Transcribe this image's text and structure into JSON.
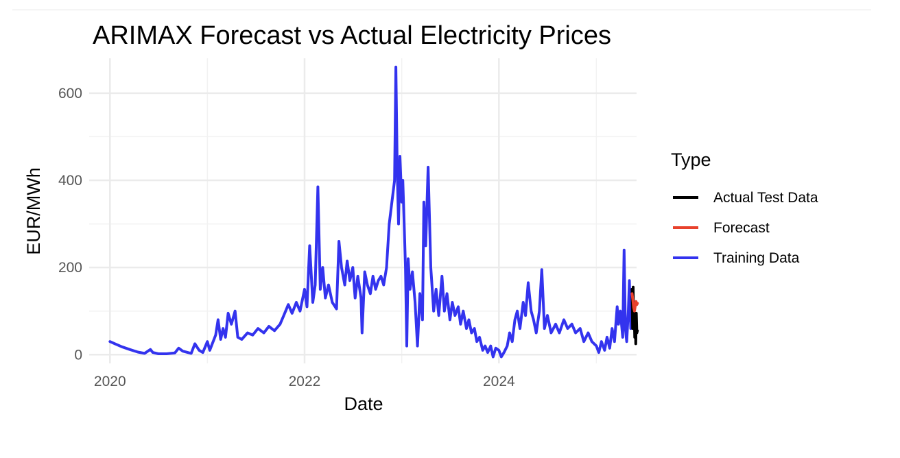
{
  "chart_data": {
    "type": "line",
    "title": "ARIMAX Forecast vs Actual Electricity Prices",
    "xlabel": "Date",
    "ylabel": "EUR/MWh",
    "xlim": [
      "2019-10-15",
      "2025-06-01"
    ],
    "ylim": [
      -20,
      680
    ],
    "x_ticks": [
      {
        "date": "2020-01-01",
        "label": "2020"
      },
      {
        "date": "2022-01-01",
        "label": "2022"
      },
      {
        "date": "2024-01-01",
        "label": "2024"
      }
    ],
    "y_ticks": [
      0,
      200,
      400,
      600
    ],
    "grid": true,
    "legend": {
      "title": "Type",
      "position": "right",
      "entries": [
        {
          "label": "Actual Test Data",
          "color": "#000000"
        },
        {
          "label": "Forecast",
          "color": "#e8412c"
        },
        {
          "label": "Training Data",
          "color": "#3333ee"
        }
      ]
    },
    "series": [
      {
        "name": "Training Data",
        "color": "#3333ee",
        "points": [
          [
            "2020-01-01",
            30
          ],
          [
            "2020-01-20",
            25
          ],
          [
            "2020-02-15",
            18
          ],
          [
            "2020-03-15",
            12
          ],
          [
            "2020-04-15",
            6
          ],
          [
            "2020-05-10",
            3
          ],
          [
            "2020-06-01",
            12
          ],
          [
            "2020-06-10",
            5
          ],
          [
            "2020-07-01",
            2
          ],
          [
            "2020-08-01",
            2
          ],
          [
            "2020-09-01",
            4
          ],
          [
            "2020-09-15",
            15
          ],
          [
            "2020-10-01",
            8
          ],
          [
            "2020-11-01",
            3
          ],
          [
            "2020-11-15",
            25
          ],
          [
            "2020-12-01",
            10
          ],
          [
            "2020-12-15",
            5
          ],
          [
            "2021-01-01",
            30
          ],
          [
            "2021-01-10",
            10
          ],
          [
            "2021-02-01",
            45
          ],
          [
            "2021-02-10",
            80
          ],
          [
            "2021-02-20",
            35
          ],
          [
            "2021-03-01",
            60
          ],
          [
            "2021-03-10",
            40
          ],
          [
            "2021-03-20",
            95
          ],
          [
            "2021-04-01",
            70
          ],
          [
            "2021-04-15",
            100
          ],
          [
            "2021-04-25",
            40
          ],
          [
            "2021-05-10",
            35
          ],
          [
            "2021-06-01",
            50
          ],
          [
            "2021-06-20",
            45
          ],
          [
            "2021-07-10",
            60
          ],
          [
            "2021-08-01",
            50
          ],
          [
            "2021-08-20",
            65
          ],
          [
            "2021-09-10",
            55
          ],
          [
            "2021-10-01",
            70
          ],
          [
            "2021-10-15",
            90
          ],
          [
            "2021-11-01",
            115
          ],
          [
            "2021-11-15",
            95
          ],
          [
            "2021-12-01",
            120
          ],
          [
            "2021-12-15",
            100
          ],
          [
            "2022-01-01",
            150
          ],
          [
            "2022-01-10",
            110
          ],
          [
            "2022-01-20",
            250
          ],
          [
            "2022-02-01",
            120
          ],
          [
            "2022-02-10",
            160
          ],
          [
            "2022-02-20",
            385
          ],
          [
            "2022-03-01",
            150
          ],
          [
            "2022-03-10",
            200
          ],
          [
            "2022-03-20",
            130
          ],
          [
            "2022-04-01",
            160
          ],
          [
            "2022-04-15",
            120
          ],
          [
            "2022-05-01",
            105
          ],
          [
            "2022-05-10",
            260
          ],
          [
            "2022-05-20",
            200
          ],
          [
            "2022-06-01",
            160
          ],
          [
            "2022-06-10",
            215
          ],
          [
            "2022-06-20",
            170
          ],
          [
            "2022-07-01",
            200
          ],
          [
            "2022-07-10",
            130
          ],
          [
            "2022-07-20",
            180
          ],
          [
            "2022-08-01",
            130
          ],
          [
            "2022-08-05",
            50
          ],
          [
            "2022-08-15",
            190
          ],
          [
            "2022-08-25",
            160
          ],
          [
            "2022-09-05",
            140
          ],
          [
            "2022-09-15",
            180
          ],
          [
            "2022-09-25",
            150
          ],
          [
            "2022-10-05",
            170
          ],
          [
            "2022-10-15",
            180
          ],
          [
            "2022-10-25",
            160
          ],
          [
            "2022-11-05",
            200
          ],
          [
            "2022-11-15",
            300
          ],
          [
            "2022-11-25",
            350
          ],
          [
            "2022-12-05",
            400
          ],
          [
            "2022-12-10",
            660
          ],
          [
            "2022-12-15",
            420
          ],
          [
            "2022-12-20",
            300
          ],
          [
            "2022-12-25",
            455
          ],
          [
            "2023-01-01",
            350
          ],
          [
            "2023-01-05",
            400
          ],
          [
            "2023-01-10",
            300
          ],
          [
            "2023-01-15",
            200
          ],
          [
            "2023-01-20",
            20
          ],
          [
            "2023-01-25",
            220
          ],
          [
            "2023-02-01",
            150
          ],
          [
            "2023-02-10",
            190
          ],
          [
            "2023-02-20",
            120
          ],
          [
            "2023-03-01",
            20
          ],
          [
            "2023-03-10",
            140
          ],
          [
            "2023-03-20",
            80
          ],
          [
            "2023-03-25",
            350
          ],
          [
            "2023-04-01",
            250
          ],
          [
            "2023-04-10",
            430
          ],
          [
            "2023-04-20",
            200
          ],
          [
            "2023-05-01",
            100
          ],
          [
            "2023-05-10",
            150
          ],
          [
            "2023-05-20",
            90
          ],
          [
            "2023-06-01",
            180
          ],
          [
            "2023-06-10",
            100
          ],
          [
            "2023-06-20",
            140
          ],
          [
            "2023-07-01",
            80
          ],
          [
            "2023-07-10",
            120
          ],
          [
            "2023-07-20",
            90
          ],
          [
            "2023-08-01",
            110
          ],
          [
            "2023-08-10",
            70
          ],
          [
            "2023-08-20",
            100
          ],
          [
            "2023-09-01",
            60
          ],
          [
            "2023-09-10",
            80
          ],
          [
            "2023-09-20",
            50
          ],
          [
            "2023-10-01",
            60
          ],
          [
            "2023-10-10",
            30
          ],
          [
            "2023-10-20",
            40
          ],
          [
            "2023-11-01",
            10
          ],
          [
            "2023-11-10",
            20
          ],
          [
            "2023-11-20",
            5
          ],
          [
            "2023-12-01",
            20
          ],
          [
            "2023-12-10",
            -5
          ],
          [
            "2023-12-20",
            15
          ],
          [
            "2024-01-01",
            10
          ],
          [
            "2024-01-10",
            -5
          ],
          [
            "2024-01-20",
            5
          ],
          [
            "2024-02-01",
            20
          ],
          [
            "2024-02-10",
            50
          ],
          [
            "2024-02-20",
            30
          ],
          [
            "2024-03-01",
            80
          ],
          [
            "2024-03-10",
            100
          ],
          [
            "2024-03-20",
            60
          ],
          [
            "2024-04-01",
            120
          ],
          [
            "2024-04-10",
            90
          ],
          [
            "2024-04-20",
            165
          ],
          [
            "2024-05-01",
            100
          ],
          [
            "2024-05-10",
            80
          ],
          [
            "2024-05-20",
            50
          ],
          [
            "2024-06-01",
            100
          ],
          [
            "2024-06-10",
            195
          ],
          [
            "2024-06-20",
            60
          ],
          [
            "2024-07-01",
            90
          ],
          [
            "2024-07-15",
            50
          ],
          [
            "2024-08-01",
            70
          ],
          [
            "2024-08-15",
            50
          ],
          [
            "2024-09-01",
            80
          ],
          [
            "2024-09-15",
            60
          ],
          [
            "2024-10-01",
            70
          ],
          [
            "2024-10-15",
            50
          ],
          [
            "2024-11-01",
            60
          ],
          [
            "2024-11-15",
            30
          ],
          [
            "2024-12-01",
            50
          ],
          [
            "2024-12-15",
            30
          ],
          [
            "2025-01-01",
            20
          ],
          [
            "2025-01-10",
            5
          ],
          [
            "2025-01-20",
            30
          ],
          [
            "2025-02-01",
            10
          ],
          [
            "2025-02-10",
            40
          ],
          [
            "2025-02-20",
            15
          ],
          [
            "2025-03-01",
            60
          ],
          [
            "2025-03-10",
            30
          ],
          [
            "2025-03-20",
            110
          ],
          [
            "2025-03-25",
            70
          ],
          [
            "2025-04-01",
            100
          ],
          [
            "2025-04-10",
            40
          ],
          [
            "2025-04-15",
            240
          ],
          [
            "2025-04-20",
            60
          ],
          [
            "2025-04-25",
            30
          ],
          [
            "2025-05-01",
            100
          ],
          [
            "2025-05-05",
            170
          ],
          [
            "2025-05-10",
            60
          ],
          [
            "2025-05-15",
            150
          ]
        ]
      },
      {
        "name": "Actual Test Data",
        "color": "#000000",
        "points": [
          [
            "2025-05-15",
            150
          ],
          [
            "2025-05-17",
            60
          ],
          [
            "2025-05-19",
            155
          ],
          [
            "2025-05-21",
            70
          ],
          [
            "2025-05-23",
            100
          ],
          [
            "2025-05-25",
            40
          ],
          [
            "2025-05-27",
            90
          ],
          [
            "2025-05-29",
            25
          ],
          [
            "2025-05-31",
            95
          ],
          [
            "2025-06-02",
            50
          ],
          [
            "2025-06-04",
            55
          ]
        ]
      },
      {
        "name": "Forecast",
        "color": "#e8412c",
        "points": [
          [
            "2025-05-15",
            140
          ],
          [
            "2025-05-18",
            125
          ],
          [
            "2025-05-21",
            108
          ],
          [
            "2025-05-24",
            100
          ],
          [
            "2025-05-27",
            112
          ],
          [
            "2025-05-30",
            122
          ],
          [
            "2025-06-02",
            115
          ],
          [
            "2025-06-04",
            118
          ]
        ]
      }
    ]
  }
}
